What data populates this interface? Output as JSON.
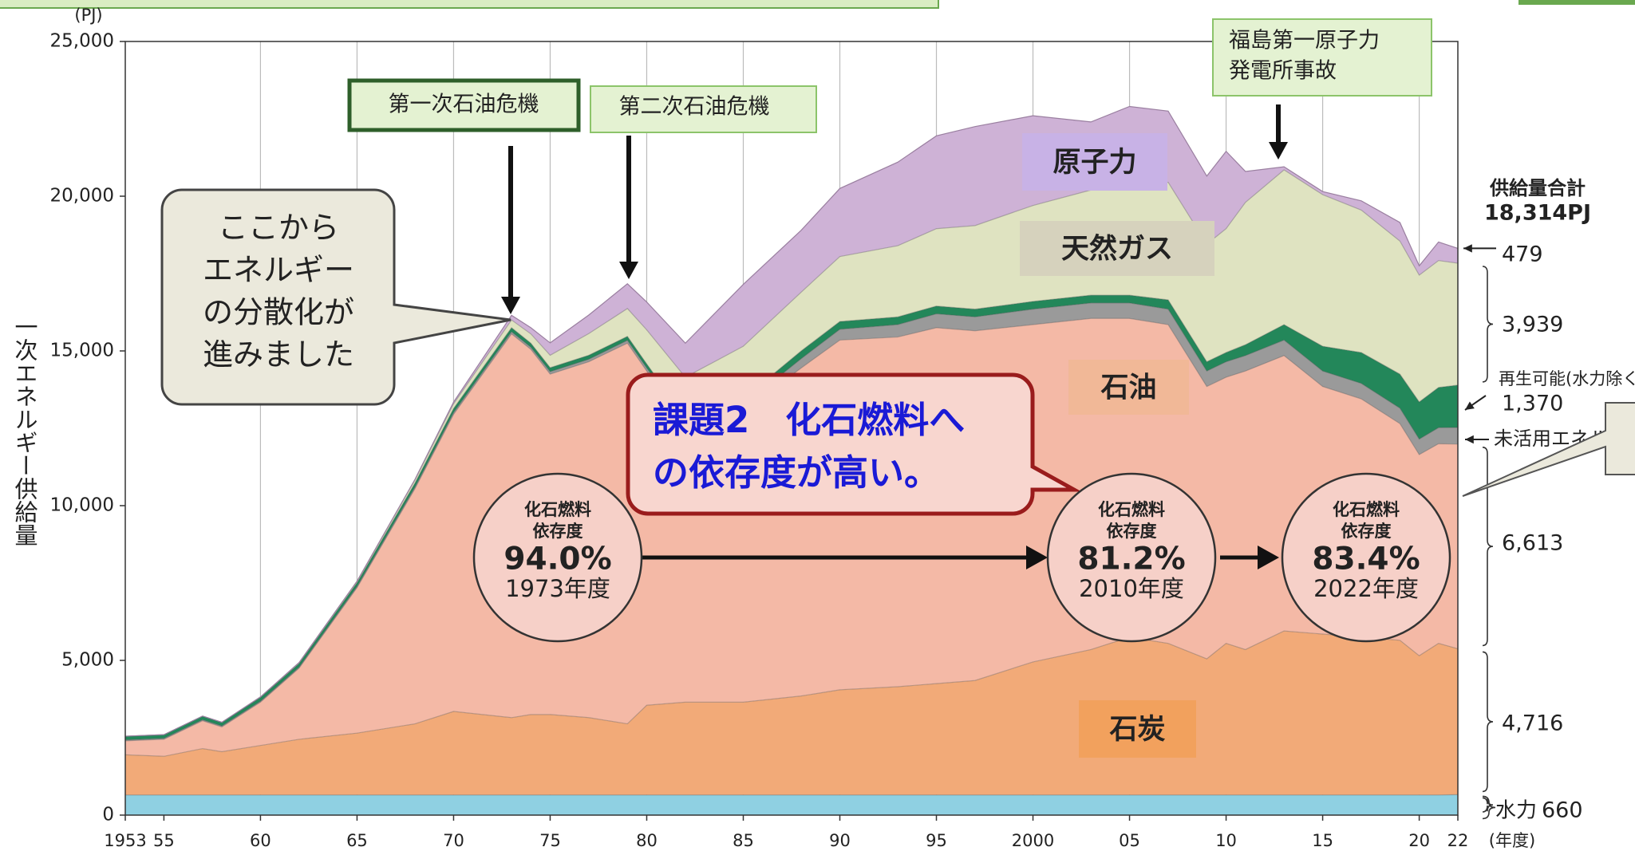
{
  "chart_data": {
    "type": "area",
    "stacked": true,
    "y_unit": "(PJ)",
    "y_label": "一次エネルギー供給量",
    "x_unit": "(年度)",
    "x": [
      1953,
      1955,
      1957,
      1958,
      1960,
      1962,
      1965,
      1968,
      1970,
      1973,
      1974,
      1975,
      1977,
      1979,
      1980,
      1982,
      1985,
      1988,
      1990,
      1993,
      1995,
      1997,
      2000,
      2003,
      2005,
      2007,
      2009,
      2010,
      2011,
      2013,
      2015,
      2017,
      2019,
      2020,
      2021,
      2022
    ],
    "xlim": [
      1953,
      2022
    ],
    "ylim": [
      0,
      25000
    ],
    "yticks": [
      0,
      {
        "value": 5000,
        "label": "5,000"
      },
      {
        "value": 10000,
        "label": "10,000"
      },
      {
        "value": 15000,
        "label": "15,000"
      },
      {
        "value": 20000,
        "label": "20,000"
      },
      {
        "value": 25000,
        "label": "25,000"
      }
    ],
    "xticks": [
      1953,
      {
        "value": 1955,
        "label": "55"
      },
      {
        "value": 1960,
        "label": "60"
      },
      {
        "value": 1965,
        "label": "65"
      },
      {
        "value": 1970,
        "label": "70"
      },
      {
        "value": 1975,
        "label": "75"
      },
      {
        "value": 1980,
        "label": "80"
      },
      {
        "value": 1985,
        "label": "85"
      },
      {
        "value": 1990,
        "label": "90"
      },
      {
        "value": 1995,
        "label": "95"
      },
      2000,
      {
        "value": 2005,
        "label": "05"
      },
      {
        "value": 2010,
        "label": "10"
      },
      {
        "value": 2015,
        "label": "15"
      },
      {
        "value": 2020,
        "label": "20"
      },
      {
        "value": 2022,
        "label": "22"
      }
    ],
    "grid": true,
    "series": [
      {
        "name": "水力",
        "color": "#8fd0e2",
        "end_label": "660",
        "values": [
          650,
          650,
          650,
          650,
          650,
          650,
          650,
          650,
          650,
          650,
          650,
          650,
          650,
          650,
          650,
          650,
          650,
          650,
          650,
          650,
          650,
          650,
          650,
          650,
          650,
          650,
          650,
          650,
          650,
          650,
          650,
          650,
          650,
          650,
          650,
          660
        ]
      },
      {
        "name": "石炭",
        "color": "#f2aa78",
        "end_label": "4,716",
        "values": [
          1300,
          1250,
          1500,
          1400,
          1600,
          1800,
          2000,
          2300,
          2700,
          2500,
          2600,
          2600,
          2500,
          2300,
          2900,
          3000,
          3000,
          3200,
          3400,
          3500,
          3600,
          3700,
          4300,
          4700,
          5100,
          4900,
          4400,
          4900,
          4700,
          5300,
          5200,
          5100,
          5000,
          4500,
          4900,
          4716
        ]
      },
      {
        "name": "石油",
        "color": "#f4b9a6",
        "end_label": "6,613",
        "values": [
          450,
          550,
          900,
          800,
          1400,
          2300,
          4700,
          7600,
          9600,
          12400,
          11800,
          11000,
          11500,
          12300,
          10800,
          8900,
          9400,
          10600,
          11300,
          11300,
          11500,
          11300,
          10900,
          10700,
          10300,
          10300,
          8800,
          8600,
          9000,
          8900,
          8000,
          7700,
          7000,
          6500,
          6450,
          6613
        ]
      },
      {
        "name": "未活用エネルギー",
        "color": "#9a9a9a",
        "values": [
          30,
          30,
          30,
          30,
          30,
          30,
          40,
          50,
          60,
          70,
          70,
          80,
          80,
          90,
          100,
          150,
          200,
          300,
          350,
          400,
          450,
          450,
          500,
          500,
          500,
          500,
          500,
          500,
          500,
          500,
          500,
          500,
          500,
          500,
          520,
          537
        ]
      },
      {
        "name": "再生可能(水力除く)",
        "color": "#23875a",
        "end_label": "1,370",
        "values": [
          120,
          120,
          120,
          120,
          120,
          120,
          120,
          130,
          130,
          130,
          130,
          130,
          130,
          130,
          130,
          150,
          200,
          250,
          250,
          250,
          250,
          250,
          250,
          250,
          250,
          300,
          300,
          300,
          350,
          500,
          800,
          1000,
          1100,
          1200,
          1300,
          1370
        ]
      },
      {
        "name": "天然ガス",
        "color": "#dfe3c1",
        "end_label": "3,939",
        "values": [
          0,
          0,
          0,
          0,
          20,
          30,
          50,
          100,
          150,
          250,
          300,
          400,
          700,
          900,
          1100,
          1300,
          1700,
          1900,
          2100,
          2300,
          2500,
          2700,
          3100,
          3400,
          3400,
          3800,
          3800,
          4000,
          4600,
          5000,
          4900,
          4600,
          4300,
          4100,
          4100,
          3939
        ]
      },
      {
        "name": "原子力",
        "color": "#ceb2d6",
        "end_label": "479",
        "values": [
          0,
          0,
          0,
          0,
          0,
          0,
          0,
          20,
          60,
          150,
          200,
          400,
          600,
          800,
          900,
          1100,
          2000,
          2000,
          2200,
          2700,
          3000,
          3200,
          2900,
          2200,
          2700,
          2300,
          2200,
          2500,
          1000,
          100,
          100,
          300,
          600,
          300,
          600,
          479
        ]
      }
    ],
    "total": {
      "label": "供給量合計",
      "value_label": "18,314PJ"
    },
    "annotations": {
      "oil_crisis_1": "第一次石油危機",
      "oil_crisis_2": "第二次石油危機",
      "fukushima": [
        "福島第一原子力",
        "発電所事故"
      ],
      "dispersal": [
        "ここから",
        "エネルギー",
        "の分散化が",
        "進みました"
      ],
      "issue": [
        "課題2　化石燃料へ",
        "の依存度が高い。"
      ],
      "dependency": [
        {
          "lines": [
            "化石燃料",
            "依存度"
          ],
          "value_label": "94.0%",
          "year_label": "1973年度"
        },
        {
          "lines": [
            "化石燃料",
            "依存度"
          ],
          "value_label": "81.2%",
          "year_label": "2010年度"
        },
        {
          "lines": [
            "化石燃料",
            "依存度"
          ],
          "value_label": "83.4%",
          "year_label": "2022年度"
        }
      ]
    }
  }
}
